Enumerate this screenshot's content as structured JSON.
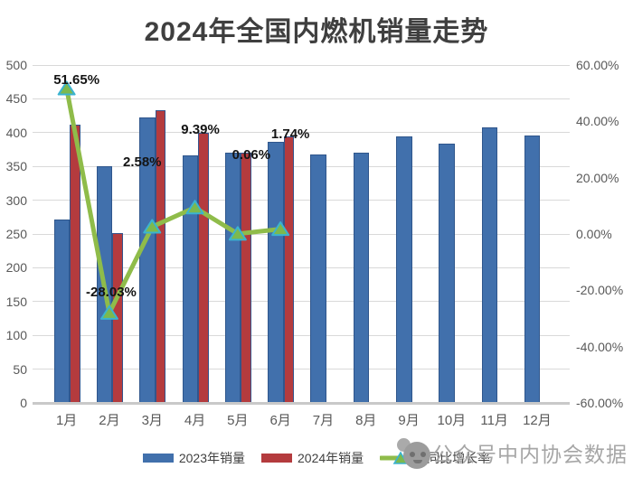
{
  "title": "2024年全国内燃机销量走势",
  "watermark": {
    "prefix": "公众号",
    "name": "中内协会数据",
    "color": "#A6A6A6"
  },
  "chart_data": {
    "type": "combo",
    "title": "2024年全国内燃机销量走势",
    "categories": [
      "1月",
      "2月",
      "3月",
      "4月",
      "5月",
      "6月",
      "7月",
      "8月",
      "9月",
      "10月",
      "11月",
      "12月"
    ],
    "series": [
      {
        "name": "2023年销量",
        "type": "bar",
        "color": "#4170AC",
        "border_color": "#2F568C",
        "values": [
          272,
          350,
          422,
          366,
          370,
          387,
          367,
          370,
          394,
          384,
          408,
          396
        ]
      },
      {
        "name": "2024年销量",
        "type": "bar",
        "color": "#B43B3E",
        "border_color": "#35548C",
        "values": [
          412,
          252,
          433,
          400,
          370,
          394,
          null,
          null,
          null,
          null,
          null,
          null
        ]
      },
      {
        "name": "同比增长率",
        "type": "line",
        "axis": "right",
        "color": "#8FBC4A",
        "marker_fill": "#7CB94E",
        "marker_border": "#3BB3D0",
        "values": [
          51.65,
          -28.03,
          2.58,
          9.39,
          0.06,
          1.74,
          null,
          null,
          null,
          null,
          null,
          null
        ]
      }
    ],
    "data_labels": [
      "51.65%",
      "-28.03%",
      "2.58%",
      "9.39%",
      "0.06%",
      "1.74%"
    ],
    "left_axis": {
      "min": 0,
      "max": 500,
      "step": 50,
      "ticks": [
        "500",
        "450",
        "400",
        "350",
        "300",
        "250",
        "200",
        "150",
        "100",
        "50",
        "0"
      ]
    },
    "right_axis": {
      "min": -60,
      "max": 60,
      "step": 20,
      "ticks": [
        "60.00%",
        "40.00%",
        "20.00%",
        "0.00%",
        "-20.00%",
        "-40.00%",
        "-60.00%"
      ]
    },
    "grid": true,
    "legend_position": "bottom"
  }
}
